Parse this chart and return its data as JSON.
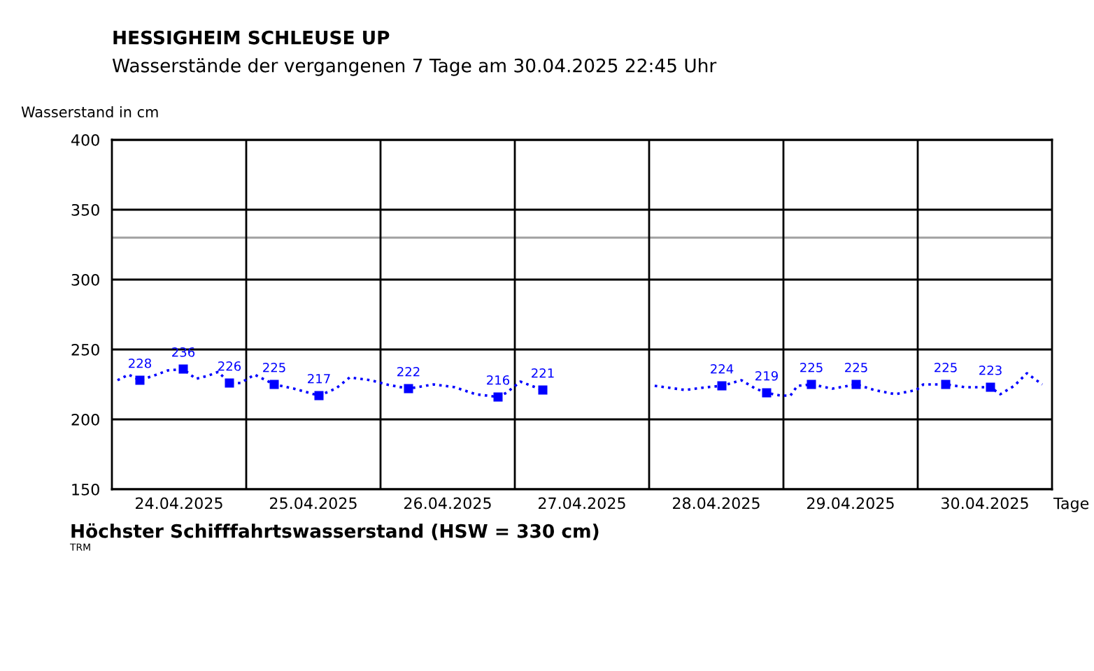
{
  "chart_data": {
    "type": "line",
    "title": "HESSIGHEIM SCHLEUSE UP",
    "subtitle": "Wasserstände der vergangenen 7 Tage am 30.04.2025 22:45 Uhr",
    "ylabel": "Wasserstand in cm",
    "xlabel": "Tage",
    "xlim": [
      "2025-04-24T00:00",
      "2025-05-01T00:00"
    ],
    "xticks": [
      {
        "value": "2025-04-24T12:00",
        "label": "24.04.2025"
      },
      {
        "value": "2025-04-25T12:00",
        "label": "25.04.2025"
      },
      {
        "value": "2025-04-26T12:00",
        "label": "26.04.2025"
      },
      {
        "value": "2025-04-27T12:00",
        "label": "27.04.2025"
      },
      {
        "value": "2025-04-28T12:00",
        "label": "28.04.2025"
      },
      {
        "value": "2025-04-29T12:00",
        "label": "29.04.2025"
      },
      {
        "value": "2025-04-30T12:00",
        "label": "30.04.2025"
      }
    ],
    "ylim": [
      150,
      400
    ],
    "yticks": [
      150,
      200,
      250,
      300,
      350,
      400
    ],
    "grid": "y",
    "series": [
      {
        "color": "#0000ff",
        "line_style": "dotted",
        "marker": "none",
        "x": [
          "2025-04-24T01:00",
          "2025-04-24T03:00",
          "2025-04-24T05:00",
          "2025-04-24T08:00",
          "2025-04-24T10:00",
          "2025-04-24T12:45",
          "2025-04-24T15:00",
          "2025-04-24T17:00",
          "2025-04-24T19:00",
          "2025-04-24T21:00",
          "2025-04-24T23:00",
          "2025-04-25T01:30",
          "2025-04-25T05:00",
          "2025-04-25T08:30",
          "2025-04-25T13:00",
          "2025-04-25T16:00",
          "2025-04-25T18:30",
          "2025-04-25T22:15",
          "2025-04-26T01:00",
          "2025-04-26T05:00",
          "2025-04-26T09:30",
          "2025-04-26T13:15",
          "2025-04-26T17:00",
          "2025-04-26T21:00",
          "2025-04-26T22:30",
          "2025-04-27T01:00",
          "2025-04-27T05:00",
          "2025-04-27T05:30",
          "2025-04-27T07:00",
          "2025-04-28T01:00",
          "2025-04-28T06:30",
          "2025-04-28T10:15",
          "2025-04-28T13:00",
          "2025-04-28T16:30",
          "2025-04-28T19:00",
          "2025-04-28T21:00",
          "2025-04-28T23:30",
          "2025-04-29T01:15",
          "2025-04-29T02:30",
          "2025-04-29T05:00",
          "2025-04-29T08:45",
          "2025-04-29T13:00",
          "2025-04-29T16:15",
          "2025-04-29T20:00",
          "2025-04-29T23:45",
          "2025-04-30T01:00",
          "2025-04-30T05:00",
          "2025-04-30T08:30",
          "2025-04-30T13:00",
          "2025-04-30T14:45",
          "2025-04-30T17:15",
          "2025-04-30T19:30",
          "2025-04-30T22:15"
        ],
        "values": [
          228,
          232,
          228,
          232,
          235,
          236,
          229,
          231,
          234,
          226,
          226,
          232,
          225,
          222,
          217,
          222,
          230,
          228,
          225,
          222,
          225,
          223,
          218,
          216,
          219,
          227,
          221,
          221,
          null,
          224,
          221,
          223,
          224,
          228,
          222,
          219,
          217,
          217,
          224,
          225,
          222,
          225,
          221,
          218,
          221,
          225,
          225,
          223,
          223,
          218,
          224,
          233,
          225
        ]
      },
      {
        "type": "scatter",
        "color": "#0000ff",
        "marker": "square",
        "x": [
          "2025-04-24T05:00",
          "2025-04-24T12:45",
          "2025-04-24T21:00",
          "2025-04-25T05:00",
          "2025-04-25T13:00",
          "2025-04-26T05:00",
          "2025-04-26T21:00",
          "2025-04-27T05:00",
          "2025-04-28T13:00",
          "2025-04-28T21:00",
          "2025-04-29T05:00",
          "2025-04-29T13:00",
          "2025-04-30T05:00",
          "2025-04-30T13:00"
        ],
        "values": [
          228,
          236,
          226,
          225,
          217,
          222,
          216,
          221,
          224,
          219,
          225,
          225,
          225,
          223
        ],
        "value_labels": [
          "228",
          "236",
          "226",
          "225",
          "217",
          "222",
          "216",
          "221",
          "224",
          "219",
          "225",
          "225",
          "225",
          "223"
        ]
      }
    ],
    "ref_lines": [
      {
        "axis": "y",
        "value": 330,
        "color": "#a0a0a0"
      },
      {
        "axis": "x",
        "value": "2025-04-25T00:00",
        "color": "#000000"
      },
      {
        "axis": "x",
        "value": "2025-04-26T00:00",
        "color": "#000000"
      },
      {
        "axis": "x",
        "value": "2025-04-27T00:00",
        "color": "#000000"
      },
      {
        "axis": "x",
        "value": "2025-04-28T00:00",
        "color": "#000000"
      },
      {
        "axis": "x",
        "value": "2025-04-29T00:00",
        "color": "#000000"
      },
      {
        "axis": "x",
        "value": "2025-04-30T00:00",
        "color": "#000000"
      }
    ],
    "annotations": [
      "Höchster Schifffahrtswasserstand (HSW = 330 cm)",
      "TRM"
    ]
  }
}
